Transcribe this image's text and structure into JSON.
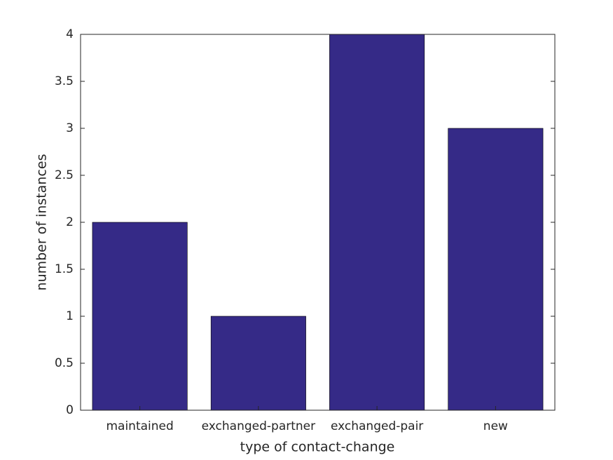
{
  "chart_data": {
    "type": "bar",
    "x_label": "type of contact-change",
    "y_label": "number of instances",
    "categories": [
      "maintained",
      "exchanged-partner",
      "exchanged-pair",
      "new"
    ],
    "values": [
      2,
      1,
      4,
      3
    ],
    "color": "#352a87",
    "ylim": [
      0,
      4
    ],
    "yticks": [
      0,
      0.5,
      1,
      1.5,
      2,
      2.5,
      3,
      3.5,
      4
    ],
    "grid": false
  }
}
